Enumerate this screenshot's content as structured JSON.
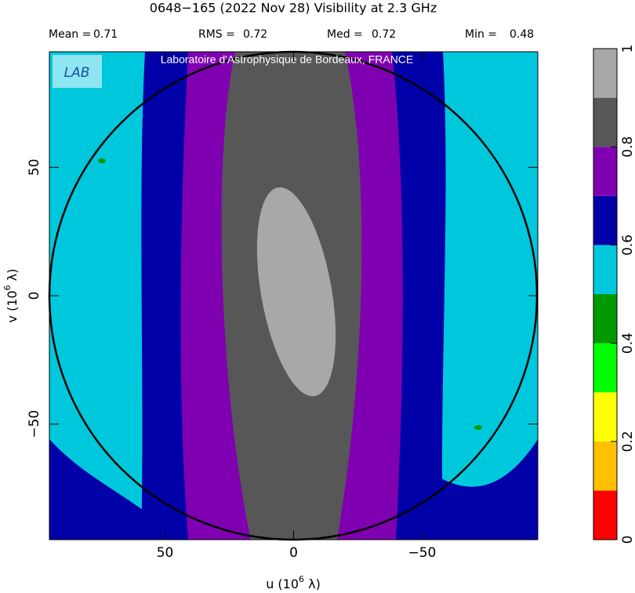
{
  "chart_data": {
    "type": "uv-map",
    "title": "0648−165   (2022 Nov 28)    Visibility at  2.3 GHz",
    "stats": [
      {
        "label": "Mean =",
        "value": 0.71
      },
      {
        "label": "RMS =",
        "value": 0.72
      },
      {
        "label": "Med =",
        "value": 0.72
      },
      {
        "label": "Min =",
        "value": 0.48
      }
    ],
    "watermark": "Laboratoire d'Astrophysique de Bordeaux, FRANCE",
    "logo": "LAB",
    "xlabel": [
      "u  (10",
      "6",
      " λ)"
    ],
    "ylabel": [
      "v  (10",
      "6",
      " λ)"
    ],
    "xlim": [
      95,
      -95
    ],
    "ylim": [
      -95,
      95
    ],
    "xticks": [
      50,
      0,
      {
        "value": -50,
        "label": "−50"
      }
    ],
    "yticks": [
      {
        "value": -50,
        "label": "−50"
      },
      0,
      50
    ],
    "colorbar": {
      "lim": [
        0,
        1
      ],
      "ticks": [
        0,
        0.2,
        0.4,
        0.6,
        0.8,
        1
      ],
      "bins": [
        0,
        0.1,
        0.2,
        0.3,
        0.4,
        0.5,
        0.6,
        0.7,
        0.8,
        0.9,
        1
      ],
      "colors": [
        "#ff0000",
        "#ffc000",
        "#ffff00",
        "#00ff00",
        "#009900",
        "#00c8dc",
        "#0000a8",
        "#7f00b0",
        "#575757",
        "#a8a8a8"
      ]
    }
  }
}
